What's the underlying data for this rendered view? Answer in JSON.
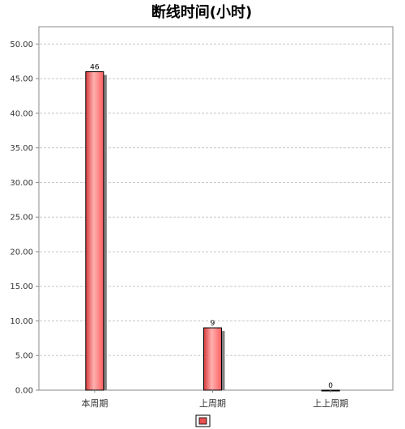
{
  "chart_data": {
    "type": "bar",
    "title": "断线时间(小时)",
    "categories": [
      "本周期",
      "上周期",
      "上上周期"
    ],
    "values": [
      46,
      9,
      0
    ],
    "value_labels": [
      "46",
      "9",
      "0"
    ],
    "ylim": [
      0,
      52.5
    ],
    "yticks": [
      "0.00",
      "5.00",
      "10.00",
      "15.00",
      "20.00",
      "25.00",
      "30.00",
      "35.00",
      "40.00",
      "45.00",
      "50.00"
    ],
    "grid": true,
    "legend": "bottom-center",
    "colors": {
      "bar_light": "#ffb0b0",
      "bar_mid": "#ff6060",
      "bar_dark": "#d83a3a",
      "shadow": "#808080",
      "grid": "#c8c8c8",
      "axis": "#888888"
    }
  }
}
